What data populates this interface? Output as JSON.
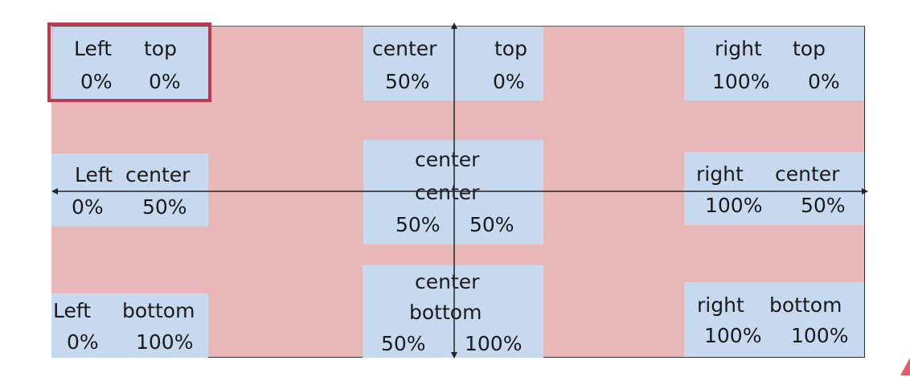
{
  "diagram": {
    "colors": {
      "area": "#e8b8b8",
      "box": "#c6d9ef",
      "highlight": "#c4354e",
      "axis": "#222222"
    },
    "boxes": {
      "left_top": {
        "a": "Left",
        "b": "top",
        "c": "0%",
        "d": "0%"
      },
      "center_top": {
        "a": "center",
        "b": "top",
        "c": "50%",
        "d": "0%"
      },
      "right_top": {
        "a": "right",
        "b": "top",
        "c": "100%",
        "d": "0%"
      },
      "left_center": {
        "a": "Left",
        "b": "center",
        "c": "0%",
        "d": "50%"
      },
      "center_center": {
        "a": "center",
        "b": "center",
        "c": "50%",
        "d": "50%"
      },
      "right_center": {
        "a": "right",
        "b": "center",
        "c": "100%",
        "d": "50%"
      },
      "left_bottom": {
        "a": "Left",
        "b": "bottom",
        "c": "0%",
        "d": "100%"
      },
      "center_bottom": {
        "a": "center",
        "b": "bottom",
        "c": "50%",
        "d": "100%"
      },
      "right_bottom": {
        "a": "right",
        "b": "bottom",
        "c": "100%",
        "d": "100%"
      }
    }
  }
}
